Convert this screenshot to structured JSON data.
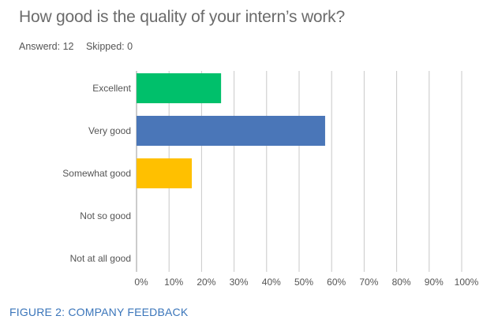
{
  "header": {
    "question": "How good is the quality of your intern’s work?",
    "answered": "Answerd: 12",
    "skipped": "Skipped: 0"
  },
  "caption": "FIGURE 2: COMPANY FEEDBACK",
  "chart_data": {
    "type": "bar",
    "orientation": "horizontal",
    "categories": [
      "Excellent",
      "Very good",
      "Somewhat good",
      "Not so good",
      "Not at all good"
    ],
    "values": [
      26,
      58,
      17,
      0,
      0
    ],
    "colors": [
      "#00c06b",
      "#4a76b8",
      "#ffc000",
      "#cccccc",
      "#cccccc"
    ],
    "x_ticks": [
      "0%",
      "10%",
      "20%",
      "30%",
      "40%",
      "50%",
      "60%",
      "70%",
      "80%",
      "90%",
      "100%"
    ],
    "xlim": [
      0,
      100
    ],
    "grid": true,
    "legend": "none"
  }
}
